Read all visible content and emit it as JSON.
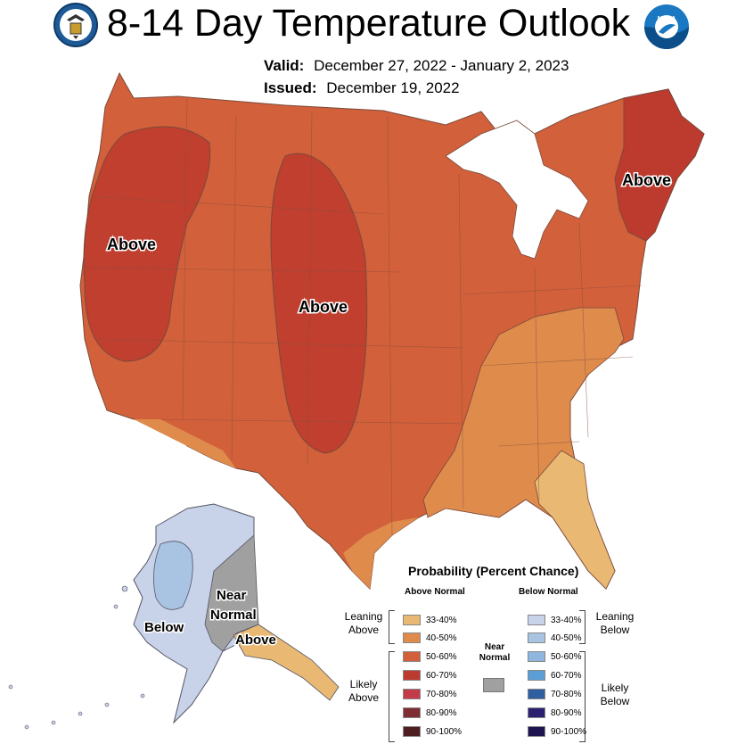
{
  "header": {
    "title": "8-14 Day Temperature Outlook",
    "valid_label": "Valid:",
    "valid_value": "December 27, 2022 - January 2, 2023",
    "issued_label": "Issued:",
    "issued_value": "December 19, 2022",
    "noaa_logo_text": "NOAA"
  },
  "map_labels": {
    "west_above": "Above",
    "central_above": "Above",
    "northeast_above": "Above",
    "alaska_below": "Below",
    "alaska_near_1": "Near",
    "alaska_near_2": "Normal",
    "alaska_above": "Above"
  },
  "colors": {
    "above_33_40": "#E9B872",
    "above_40_50": "#DE8B4C",
    "above_50_60": "#D2603A",
    "above_60_70": "#BD3A2E",
    "above_70_80": "#C23B49",
    "above_80_90": "#7F2C32",
    "above_90_100": "#4E1E22",
    "near_normal": "#A0A0A0",
    "below_33_40": "#C8D2E8",
    "below_40_50": "#A8C4E2",
    "below_50_60": "#8EB6DF",
    "below_60_70": "#5B9FD6",
    "below_70_80": "#2F5FA0",
    "below_80_90": "#2B2070",
    "below_90_100": "#1E1550"
  },
  "legend": {
    "title": "Probability (Percent Chance)",
    "above_header": "Above Normal",
    "below_header": "Below Normal",
    "near_label_1": "Near",
    "near_label_2": "Normal",
    "leaning_above_1": "Leaning",
    "leaning_above_2": "Above",
    "likely_above_1": "Likely",
    "likely_above_2": "Above",
    "leaning_below_1": "Leaning",
    "leaning_below_2": "Below",
    "likely_below_1": "Likely",
    "likely_below_2": "Below",
    "above_ranges": [
      "33-40%",
      "40-50%",
      "50-60%",
      "60-70%",
      "70-80%",
      "80-90%",
      "90-100%"
    ],
    "below_ranges": [
      "33-40%",
      "40-50%",
      "50-60%",
      "60-70%",
      "70-80%",
      "80-90%",
      "90-100%"
    ]
  }
}
